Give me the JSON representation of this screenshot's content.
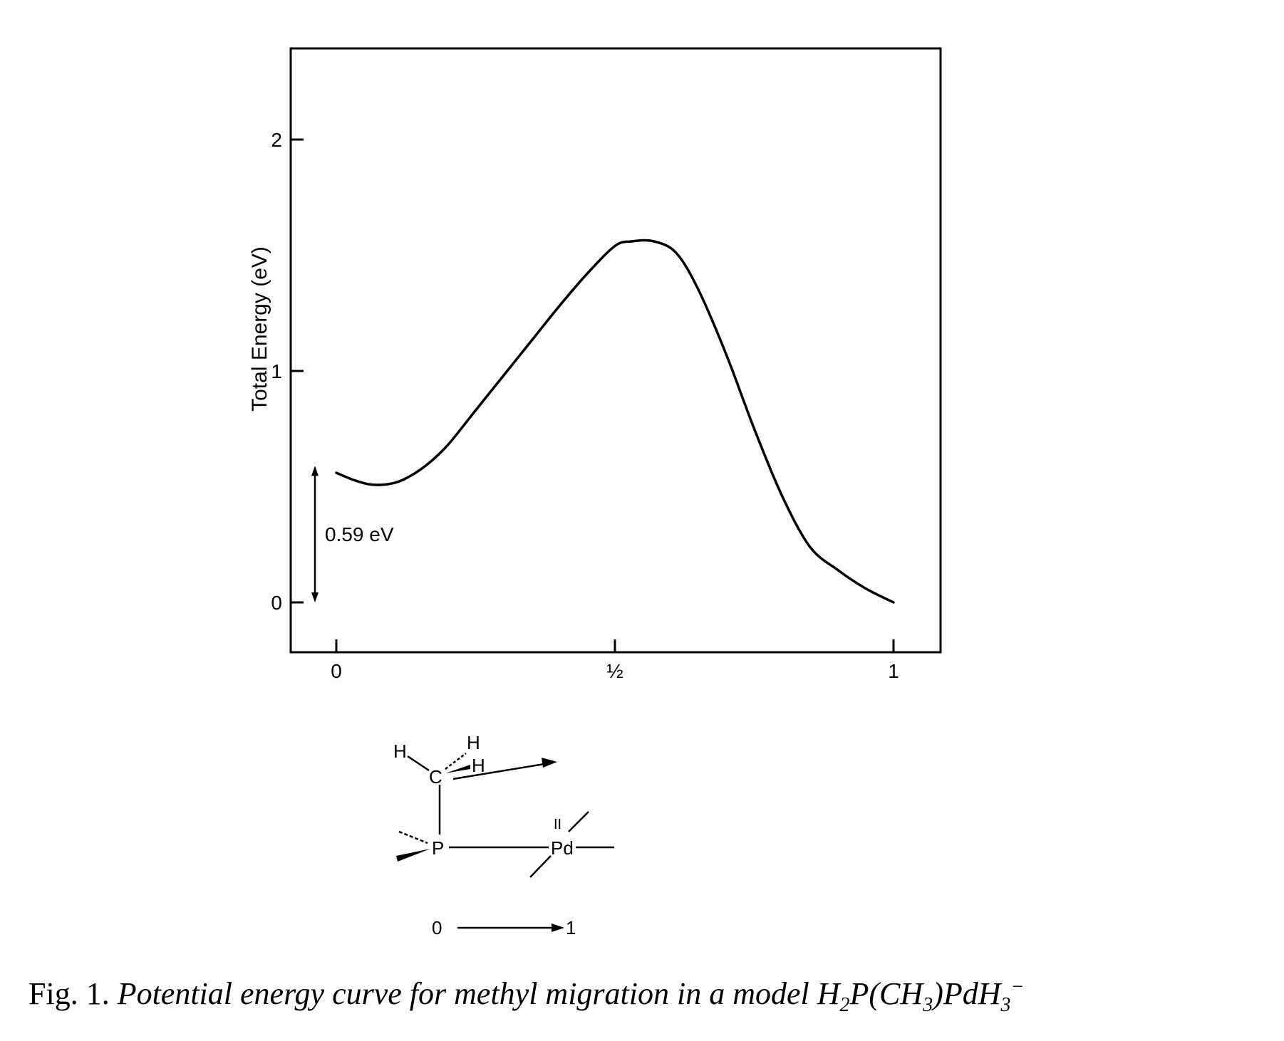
{
  "chart_data": {
    "type": "line",
    "ylabel": "Total  Energy (eV)",
    "xlabel": "",
    "x_ticks": [
      {
        "value": 0,
        "label": "0"
      },
      {
        "value": 0.5,
        "label": "½"
      },
      {
        "value": 1,
        "label": "1"
      }
    ],
    "y_ticks": [
      {
        "value": 0,
        "label": "0"
      },
      {
        "value": 1,
        "label": "1"
      },
      {
        "value": 2,
        "label": "2"
      }
    ],
    "xlim": [
      -0.08,
      1.07
    ],
    "ylim": [
      -0.2,
      2.4
    ],
    "grid": false,
    "series": [
      {
        "x": [
          0.0,
          0.03,
          0.06,
          0.09,
          0.12,
          0.16,
          0.2,
          0.25,
          0.3,
          0.35,
          0.4,
          0.45,
          0.5,
          0.53,
          0.57,
          0.61,
          0.65,
          0.7,
          0.75,
          0.8,
          0.85,
          0.9,
          0.95,
          1.0
        ],
        "y": [
          0.56,
          0.53,
          0.51,
          0.51,
          0.53,
          0.59,
          0.68,
          0.83,
          0.98,
          1.13,
          1.28,
          1.42,
          1.54,
          1.56,
          1.56,
          1.51,
          1.35,
          1.07,
          0.75,
          0.46,
          0.24,
          0.14,
          0.06,
          0.0
        ]
      }
    ],
    "annotations": [
      {
        "text": "0.59 eV",
        "type": "double-arrow",
        "from_y": 0.0,
        "to_y": 0.59
      }
    ]
  },
  "diagram": {
    "atoms": {
      "h1": "H",
      "h2": "H",
      "h3": "H",
      "carbon": "C",
      "phosphorus": "P",
      "palladium": "Pd",
      "oxidation_state": "II"
    },
    "reaction_start": "0",
    "reaction_end": "1"
  },
  "caption": {
    "prefix": "Fig. 1.",
    "text": "Potential energy curve for methyl migration in a model H",
    "formula_parts": [
      "2",
      "P(CH",
      "3",
      ")PdH",
      "3",
      "−"
    ]
  }
}
